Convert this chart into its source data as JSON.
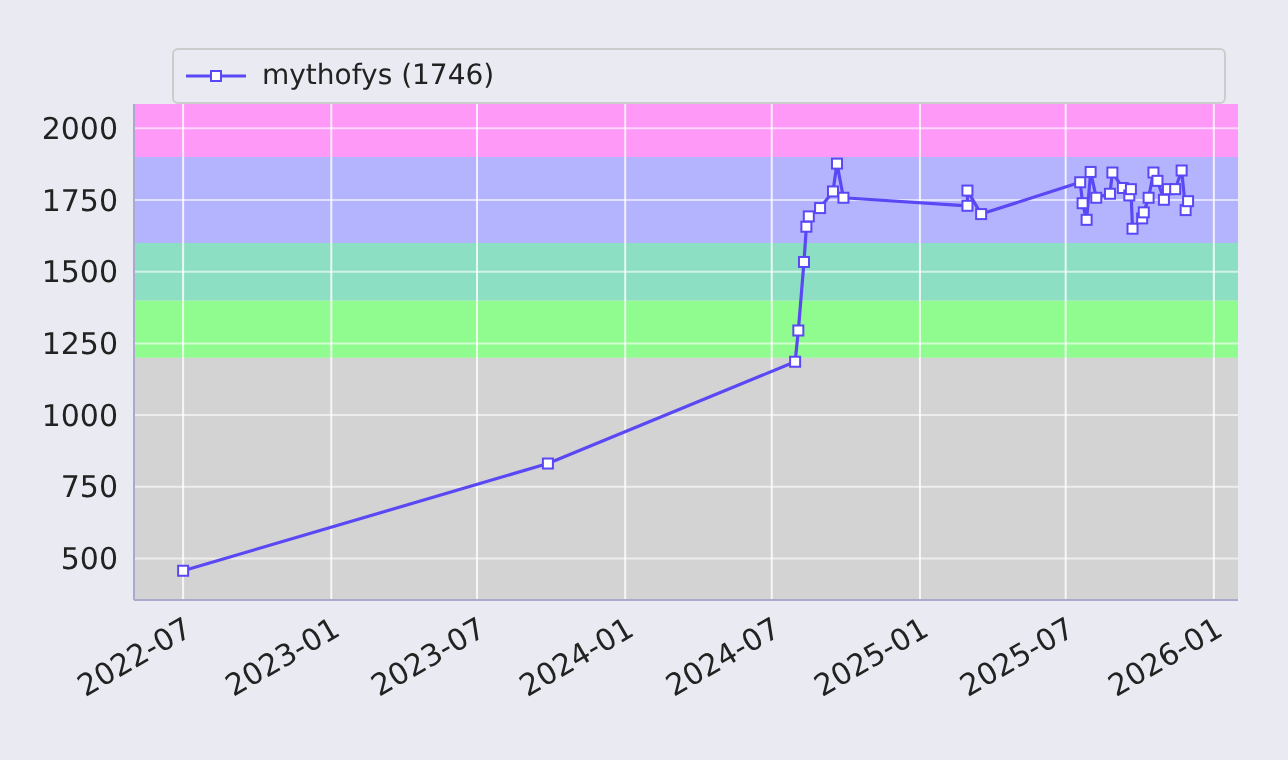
{
  "chart_data": {
    "type": "line",
    "x": [
      "2022-07-01",
      "2023-09-27",
      "2024-07-30",
      "2024-08-03",
      "2024-08-10",
      "2024-08-13",
      "2024-08-16",
      "2024-08-30",
      "2024-09-15",
      "2024-09-20",
      "2024-09-28",
      "2025-03-01",
      "2025-03-01",
      "2025-03-18",
      "2025-07-19",
      "2025-07-22",
      "2025-07-27",
      "2025-08-01",
      "2025-08-08",
      "2025-08-25",
      "2025-08-28",
      "2025-09-10",
      "2025-09-18",
      "2025-09-20",
      "2025-09-22",
      "2025-10-04",
      "2025-10-06",
      "2025-10-12",
      "2025-10-18",
      "2025-10-23",
      "2025-10-31",
      "2025-11-05",
      "2025-11-14",
      "2025-11-22",
      "2025-11-27",
      "2025-11-30"
    ],
    "series": [
      {
        "name": "mythofys (1746)",
        "color": "#5a48f5",
        "values": [
          457,
          831,
          1186,
          1295,
          1534,
          1657,
          1693,
          1722,
          1780,
          1877,
          1758,
          1730,
          1783,
          1701,
          1812,
          1739,
          1681,
          1848,
          1758,
          1772,
          1846,
          1792,
          1766,
          1788,
          1650,
          1686,
          1707,
          1758,
          1846,
          1817,
          1751,
          1788,
          1788,
          1853,
          1715,
          1746
        ]
      }
    ],
    "xlim": [
      "2022-05-01",
      "2026-01-31"
    ],
    "xticks": [
      "2022-07",
      "2023-01",
      "2023-07",
      "2024-01",
      "2024-07",
      "2025-01",
      "2025-07",
      "2026-01"
    ],
    "ylim": [
      355,
      2085
    ],
    "yticks": [
      500,
      750,
      1000,
      1250,
      1500,
      1750,
      2000
    ],
    "bands": [
      {
        "axis": "y",
        "from": 355,
        "to": 1200,
        "color": "#d3d3d3"
      },
      {
        "axis": "y",
        "from": 1200,
        "to": 1400,
        "color": "#90fb8f"
      },
      {
        "axis": "y",
        "from": 1400,
        "to": 1600,
        "color": "#8ddfc4"
      },
      {
        "axis": "y",
        "from": 1600,
        "to": 1900,
        "color": "#b4b4fe"
      },
      {
        "axis": "y",
        "from": 1900,
        "to": 2085,
        "color": "#fe99f8"
      }
    ],
    "grid": true,
    "legend": "top",
    "marker": "square",
    "line_style": "solid"
  }
}
